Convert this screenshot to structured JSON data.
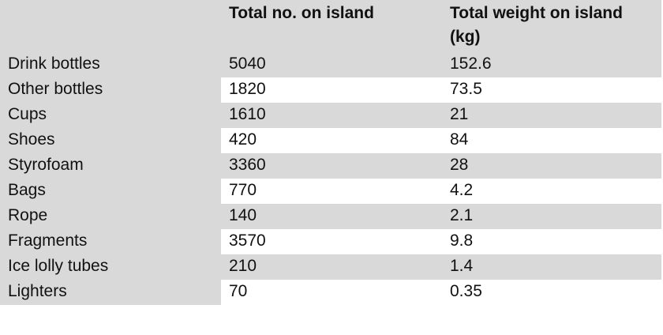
{
  "table": {
    "header": [
      "",
      "Total no. on island",
      "Total weight on island (kg)"
    ],
    "rows": [
      [
        "Drink bottles",
        5040,
        152.6
      ],
      [
        "Other bottles",
        1820,
        73.5
      ],
      [
        "Cups",
        1610,
        21
      ],
      [
        "Shoes",
        420,
        84
      ],
      [
        "Styrofoam",
        3360,
        28
      ],
      [
        "Bags",
        770,
        4.2
      ],
      [
        "Rope",
        140,
        2.1
      ],
      [
        "Fragments",
        3570,
        9.8
      ],
      [
        "Ice lolly tubes",
        210,
        1.4
      ],
      [
        "Lighters",
        70,
        0.35
      ]
    ]
  }
}
